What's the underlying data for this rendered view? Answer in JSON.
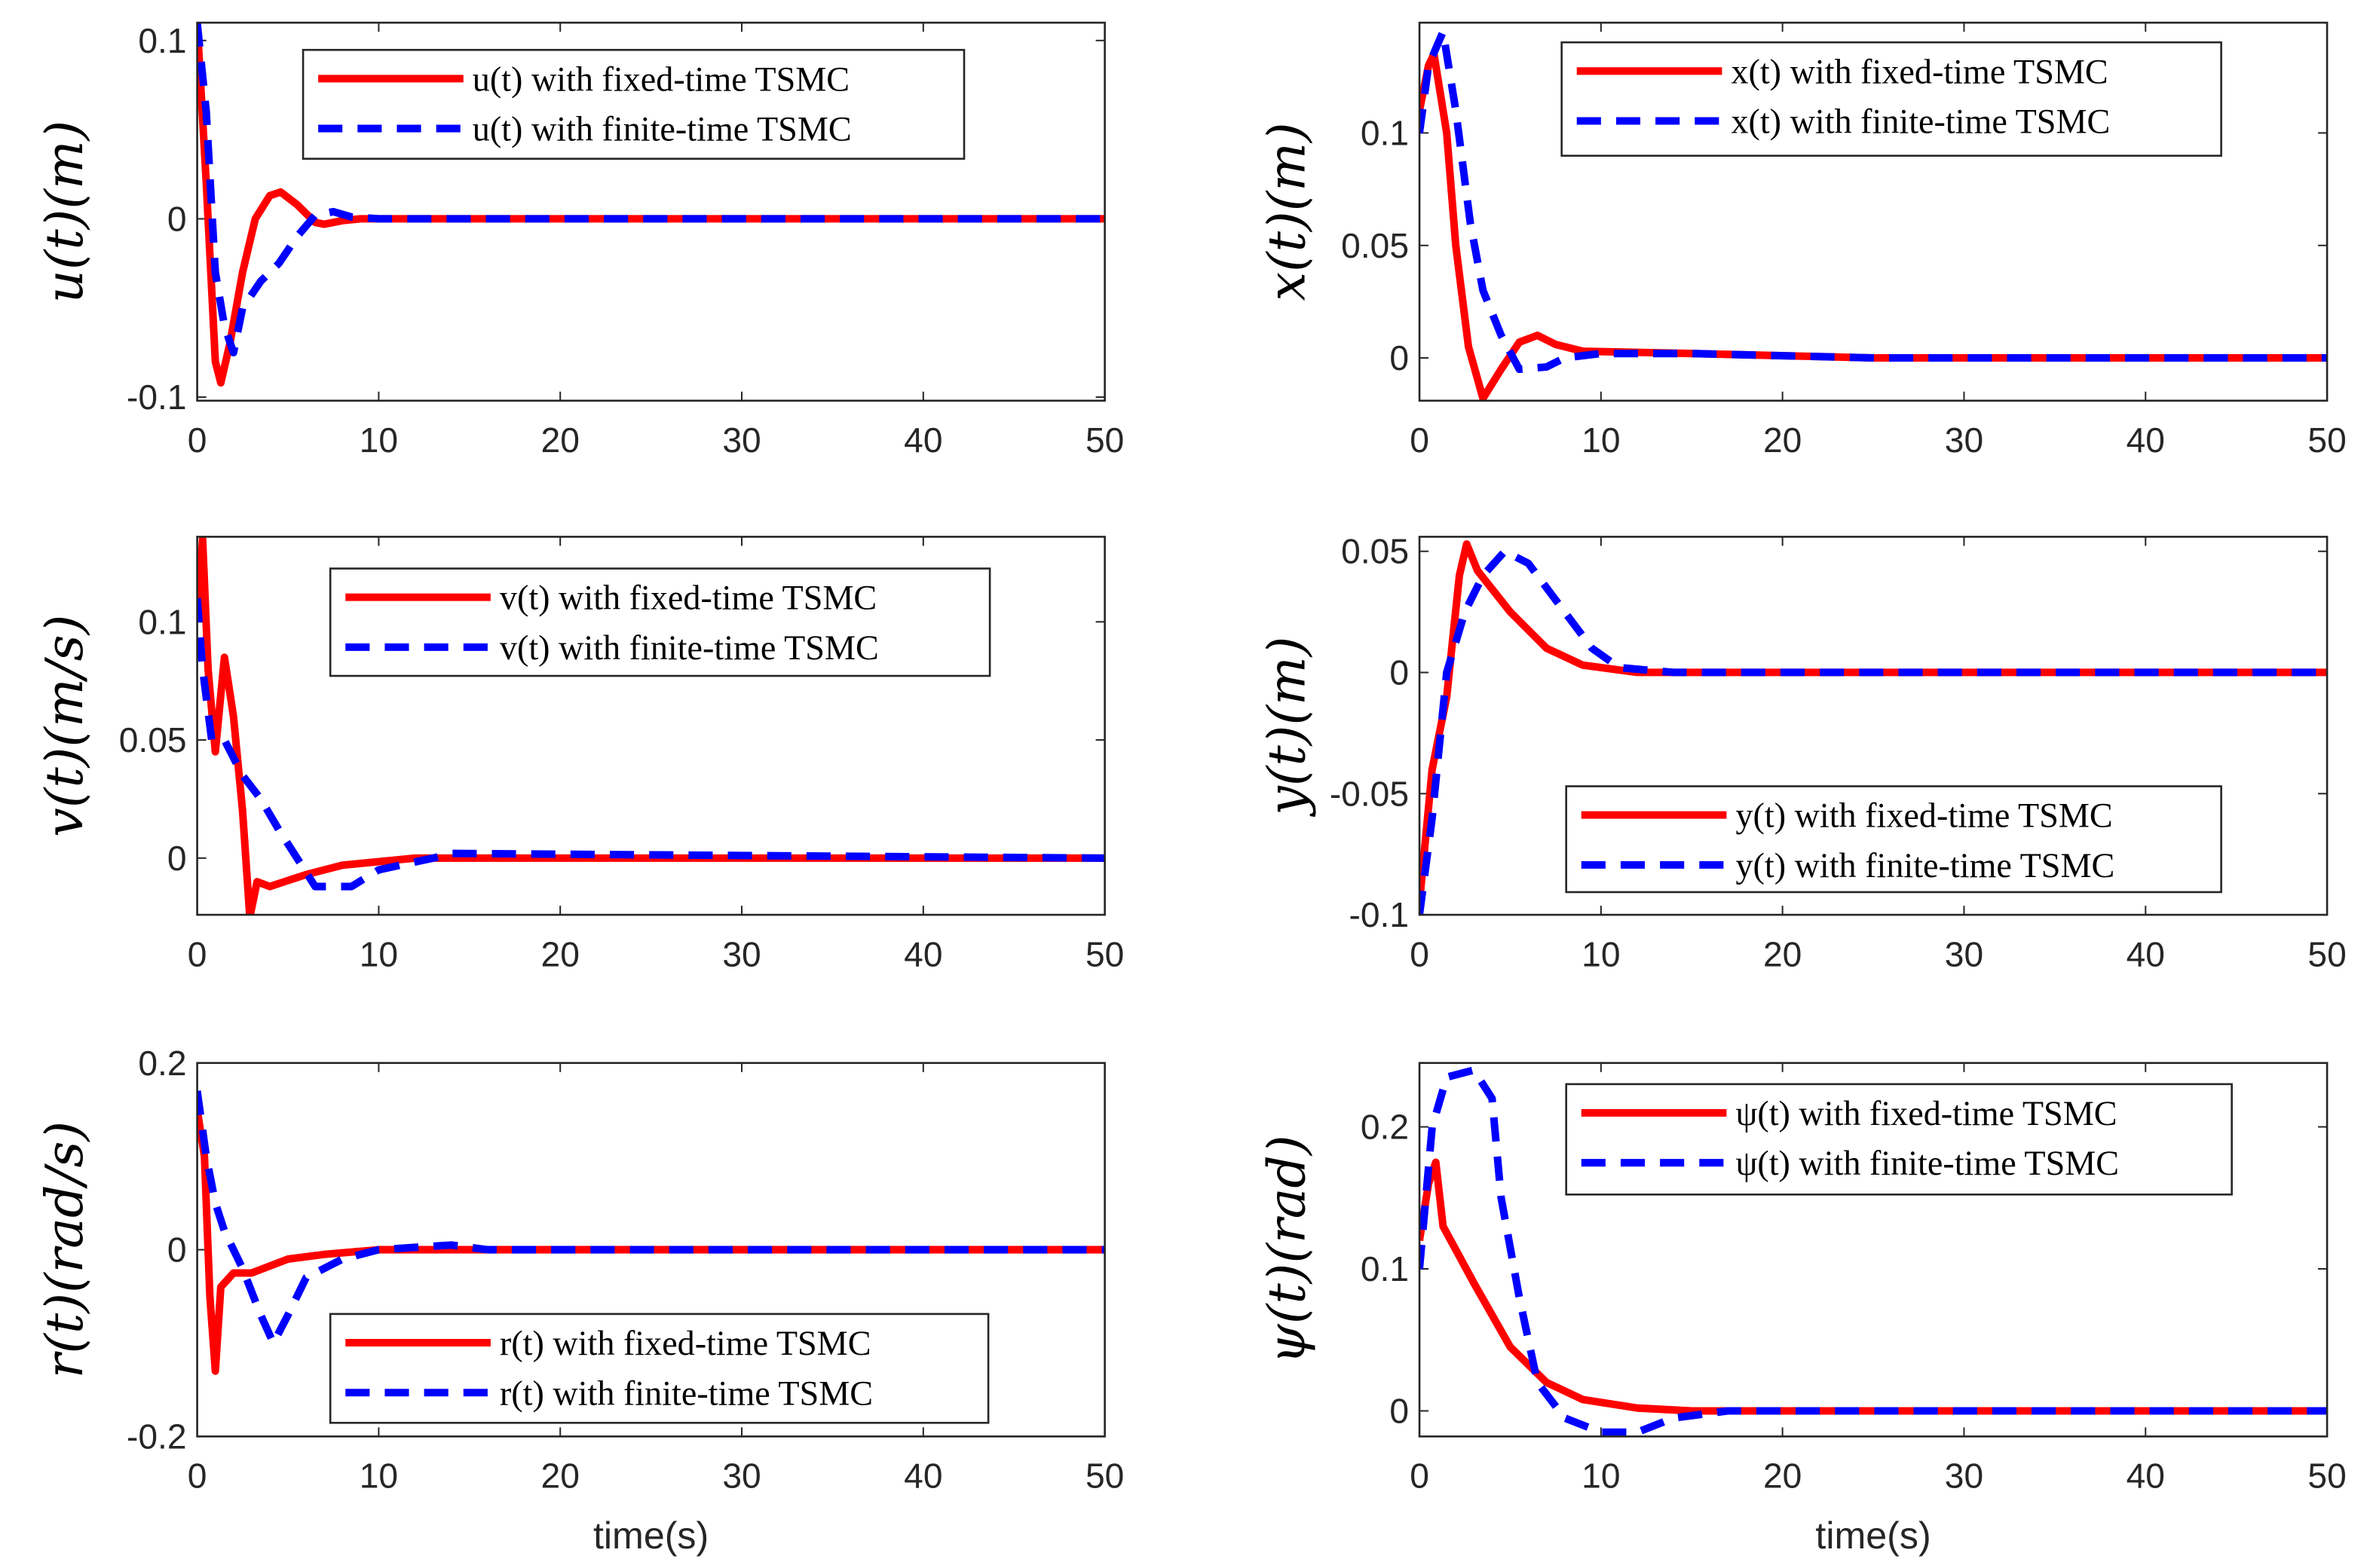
{
  "chart_data": [
    {
      "type": "line",
      "ylabel": "u(t)(m)",
      "xlabel": "",
      "xlim": [
        0,
        50
      ],
      "ylim": [
        -0.102,
        0.11
      ],
      "xticks": [
        "0",
        "10",
        "20",
        "30",
        "40",
        "50"
      ],
      "yticks": [
        {
          "v": -0.1,
          "label": "-0.1"
        },
        {
          "v": 0,
          "label": "0"
        },
        {
          "v": 0.1,
          "label": "0.1"
        }
      ],
      "legend_placement": "top-right",
      "series": [
        {
          "name": "u(t) with fixed-time TSMC",
          "color": "#ff0000",
          "style": "solid",
          "points": [
            [
              0,
              0.11
            ],
            [
              0.5,
              0.02
            ],
            [
              1,
              -0.08
            ],
            [
              1.3,
              -0.092
            ],
            [
              1.8,
              -0.07
            ],
            [
              2.5,
              -0.03
            ],
            [
              3.2,
              0
            ],
            [
              4,
              0.013
            ],
            [
              4.6,
              0.015
            ],
            [
              5.5,
              0.008
            ],
            [
              6.5,
              -0.002
            ],
            [
              7,
              -0.003
            ],
            [
              8,
              -0.001
            ],
            [
              9,
              0
            ],
            [
              50,
              0
            ]
          ]
        },
        {
          "name": "u(t) with finite-time TSMC",
          "color": "#0000ff",
          "style": "dashed",
          "points": [
            [
              0,
              0.11
            ],
            [
              0.5,
              0.06
            ],
            [
              1,
              -0.03
            ],
            [
              1.5,
              -0.06
            ],
            [
              2,
              -0.075
            ],
            [
              2.5,
              -0.05
            ],
            [
              3.5,
              -0.035
            ],
            [
              4.5,
              -0.025
            ],
            [
              5.5,
              -0.01
            ],
            [
              6.5,
              0.002
            ],
            [
              7.5,
              0.004
            ],
            [
              8.5,
              0.001
            ],
            [
              10,
              0
            ],
            [
              50,
              0
            ]
          ]
        }
      ]
    },
    {
      "type": "line",
      "ylabel": "x(t)(m)",
      "xlabel": "",
      "xlim": [
        0,
        50
      ],
      "ylim": [
        -0.019,
        0.149
      ],
      "xticks": [
        "0",
        "10",
        "20",
        "30",
        "40",
        "50"
      ],
      "yticks": [
        {
          "v": 0,
          "label": "0"
        },
        {
          "v": 0.05,
          "label": "0.05"
        },
        {
          "v": 0.1,
          "label": "0.1"
        }
      ],
      "legend_placement": "top-right",
      "series": [
        {
          "name": "x(t) with fixed-time TSMC",
          "color": "#ff0000",
          "style": "solid",
          "points": [
            [
              0,
              0.11
            ],
            [
              0.5,
              0.13
            ],
            [
              0.8,
              0.135
            ],
            [
              1.5,
              0.1
            ],
            [
              2,
              0.05
            ],
            [
              2.7,
              0.005
            ],
            [
              3.5,
              -0.018
            ],
            [
              4.5,
              -0.005
            ],
            [
              5.5,
              0.007
            ],
            [
              6.5,
              0.01
            ],
            [
              7.5,
              0.006
            ],
            [
              9,
              0.003
            ],
            [
              15,
              0.002
            ],
            [
              25,
              0
            ],
            [
              50,
              0
            ]
          ]
        },
        {
          "name": "x(t) with finite-time TSMC",
          "color": "#0000ff",
          "style": "dashed",
          "points": [
            [
              0,
              0.1
            ],
            [
              0.5,
              0.13
            ],
            [
              1.3,
              0.145
            ],
            [
              2,
              0.11
            ],
            [
              2.8,
              0.06
            ],
            [
              3.5,
              0.03
            ],
            [
              4.5,
              0.01
            ],
            [
              5.5,
              -0.005
            ],
            [
              7,
              -0.004
            ],
            [
              8,
              0
            ],
            [
              10,
              0.002
            ],
            [
              15,
              0.002
            ],
            [
              25,
              0
            ],
            [
              50,
              0
            ]
          ]
        }
      ]
    },
    {
      "type": "line",
      "ylabel": "v(t)(m/s)",
      "xlabel": "",
      "xlim": [
        0,
        50
      ],
      "ylim": [
        -0.024,
        0.136
      ],
      "xticks": [
        "0",
        "10",
        "20",
        "30",
        "40",
        "50"
      ],
      "yticks": [
        {
          "v": 0,
          "label": "0"
        },
        {
          "v": 0.05,
          "label": "0.05"
        },
        {
          "v": 0.1,
          "label": "0.1"
        }
      ],
      "legend_placement": "top-right",
      "series": [
        {
          "name": "v(t) with fixed-time TSMC",
          "color": "#ff0000",
          "style": "solid",
          "points": [
            [
              0,
              0.1
            ],
            [
              0.3,
              0.135
            ],
            [
              0.6,
              0.08
            ],
            [
              1,
              0.045
            ],
            [
              1.5,
              0.085
            ],
            [
              2,
              0.06
            ],
            [
              2.5,
              0.02
            ],
            [
              2.9,
              -0.025
            ],
            [
              3.3,
              -0.01
            ],
            [
              4,
              -0.012
            ],
            [
              6,
              -0.007
            ],
            [
              8,
              -0.003
            ],
            [
              12,
              0
            ],
            [
              50,
              0
            ]
          ]
        },
        {
          "name": "v(t) with finite-time TSMC",
          "color": "#0000ff",
          "style": "dashed",
          "points": [
            [
              0,
              0.11
            ],
            [
              0.3,
              0.08
            ],
            [
              0.8,
              0.05
            ],
            [
              1.5,
              0.05
            ],
            [
              2.5,
              0.035
            ],
            [
              3.5,
              0.025
            ],
            [
              4.5,
              0.012
            ],
            [
              5.5,
              0
            ],
            [
              6.5,
              -0.012
            ],
            [
              8.5,
              -0.012
            ],
            [
              10,
              -0.005
            ],
            [
              13,
              0
            ],
            [
              14,
              0.002
            ],
            [
              50,
              0
            ]
          ]
        }
      ]
    },
    {
      "type": "line",
      "ylabel": "y(t)(m)",
      "xlabel": "",
      "xlim": [
        0,
        50
      ],
      "ylim": [
        -0.1,
        0.056
      ],
      "xticks": [
        "0",
        "10",
        "20",
        "30",
        "40",
        "50"
      ],
      "yticks": [
        {
          "v": -0.1,
          "label": "-0.1"
        },
        {
          "v": -0.05,
          "label": "-0.05"
        },
        {
          "v": 0,
          "label": "0"
        },
        {
          "v": 0.05,
          "label": "0.05"
        }
      ],
      "legend_placement": "bottom-right",
      "series": [
        {
          "name": "y(t) with fixed-time TSMC",
          "color": "#ff0000",
          "style": "solid",
          "points": [
            [
              0,
              -0.095
            ],
            [
              0.7,
              -0.04
            ],
            [
              1.5,
              -0.01
            ],
            [
              2.2,
              0.04
            ],
            [
              2.6,
              0.053
            ],
            [
              3.2,
              0.042
            ],
            [
              5,
              0.025
            ],
            [
              7,
              0.01
            ],
            [
              9,
              0.003
            ],
            [
              12,
              0
            ],
            [
              50,
              0
            ]
          ]
        },
        {
          "name": "y(t) with finite-time TSMC",
          "color": "#0000ff",
          "style": "dashed",
          "points": [
            [
              0,
              -0.1
            ],
            [
              0.7,
              -0.06
            ],
            [
              1.5,
              0
            ],
            [
              2.5,
              0.025
            ],
            [
              3.5,
              0.04
            ],
            [
              4.7,
              0.05
            ],
            [
              6,
              0.045
            ],
            [
              7.5,
              0.03
            ],
            [
              9.5,
              0.01
            ],
            [
              11,
              0.002
            ],
            [
              14,
              0
            ],
            [
              50,
              0
            ]
          ]
        }
      ]
    },
    {
      "type": "line",
      "ylabel": "r(t)(rad/s)",
      "xlabel": "time(s)",
      "xlim": [
        0,
        50
      ],
      "ylim": [
        -0.2,
        0.2
      ],
      "xticks": [
        "0",
        "10",
        "20",
        "30",
        "40",
        "50"
      ],
      "yticks": [
        {
          "v": -0.2,
          "label": "-0.2"
        },
        {
          "v": 0,
          "label": "0"
        },
        {
          "v": 0.2,
          "label": "0.2"
        }
      ],
      "legend_placement": "bottom-right",
      "series": [
        {
          "name": "r(t) with fixed-time TSMC",
          "color": "#ff0000",
          "style": "solid",
          "points": [
            [
              0,
              0.15
            ],
            [
              0.4,
              0.1
            ],
            [
              0.7,
              -0.05
            ],
            [
              1,
              -0.13
            ],
            [
              1.3,
              -0.04
            ],
            [
              2,
              -0.025
            ],
            [
              3,
              -0.025
            ],
            [
              5,
              -0.01
            ],
            [
              7,
              -0.005
            ],
            [
              10,
              0
            ],
            [
              50,
              0
            ]
          ]
        },
        {
          "name": "r(t) with finite-time TSMC",
          "color": "#0000ff",
          "style": "dashed",
          "points": [
            [
              0,
              0.17
            ],
            [
              0.5,
              0.1
            ],
            [
              1,
              0.05
            ],
            [
              1.5,
              0.02
            ],
            [
              2.5,
              -0.02
            ],
            [
              3.5,
              -0.07
            ],
            [
              4.2,
              -0.1
            ],
            [
              5,
              -0.07
            ],
            [
              6,
              -0.03
            ],
            [
              8,
              -0.01
            ],
            [
              10,
              0
            ],
            [
              14,
              0.005
            ],
            [
              16,
              0
            ],
            [
              50,
              0
            ]
          ]
        }
      ]
    },
    {
      "type": "line",
      "ylabel": "ψ(t)(rad)",
      "xlabel": "time(s)",
      "xlim": [
        0,
        50
      ],
      "ylim": [
        -0.018,
        0.245
      ],
      "xticks": [
        "0",
        "10",
        "20",
        "30",
        "40",
        "50"
      ],
      "yticks": [
        {
          "v": 0,
          "label": "0"
        },
        {
          "v": 0.1,
          "label": "0.1"
        },
        {
          "v": 0.2,
          "label": "0.2"
        }
      ],
      "legend_placement": "top-right",
      "series": [
        {
          "name": "ψ(t) with fixed-time TSMC",
          "color": "#ff0000",
          "style": "solid",
          "points": [
            [
              0,
              0.12
            ],
            [
              0.5,
              0.16
            ],
            [
              0.9,
              0.175
            ],
            [
              1.3,
              0.13
            ],
            [
              3,
              0.09
            ],
            [
              5,
              0.045
            ],
            [
              7,
              0.02
            ],
            [
              9,
              0.008
            ],
            [
              12,
              0.002
            ],
            [
              15,
              0
            ],
            [
              50,
              0
            ]
          ]
        },
        {
          "name": "ψ(t) with finite-time TSMC",
          "color": "#0000ff",
          "style": "dashed",
          "points": [
            [
              0,
              0.1
            ],
            [
              0.7,
              0.2
            ],
            [
              1.5,
              0.235
            ],
            [
              3,
              0.24
            ],
            [
              4,
              0.22
            ],
            [
              4.5,
              0.15
            ],
            [
              5.5,
              0.08
            ],
            [
              6.5,
              0.02
            ],
            [
              8,
              -0.005
            ],
            [
              10,
              -0.015
            ],
            [
              12,
              -0.015
            ],
            [
              14,
              -0.005
            ],
            [
              17,
              0
            ],
            [
              50,
              0
            ]
          ]
        }
      ]
    }
  ]
}
